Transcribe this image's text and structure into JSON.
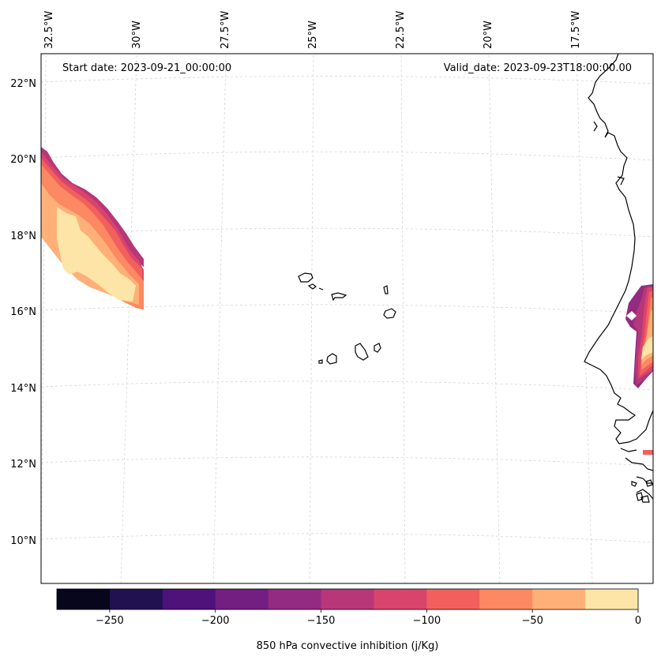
{
  "map": {
    "start_label": "Start date: 2023-09-21_00:00:00",
    "valid_label": "Valid_date: 2023-09-23T18:00:00.00",
    "lon_labels": [
      "32.5°W",
      "30°W",
      "27.5°W",
      "25°W",
      "22.5°W",
      "20°W",
      "17.5°W"
    ],
    "lat_labels": [
      "22°N",
      "20°N",
      "18°N",
      "16°N",
      "14°N",
      "12°N",
      "10°N"
    ],
    "region_extent": {
      "lon_min": -33.0,
      "lon_max": -15.5,
      "lat_min": 9.0,
      "lat_max": 22.5
    }
  },
  "colorbar": {
    "label": "850 hPa convective inhibition (j/Kg)",
    "tick_labels": [
      "−250",
      "−200",
      "−150",
      "−100",
      "−50",
      "0"
    ],
    "levels": [
      -275,
      -250,
      -225,
      -200,
      -175,
      -150,
      -125,
      -100,
      -75,
      -50,
      -25,
      0
    ],
    "colors": [
      "#07061c",
      "#221150",
      "#4f127b",
      "#721f81",
      "#932b80",
      "#b73779",
      "#d8456c",
      "#f1605d",
      "#fc8961",
      "#feb078",
      "#fde5a7"
    ]
  }
}
